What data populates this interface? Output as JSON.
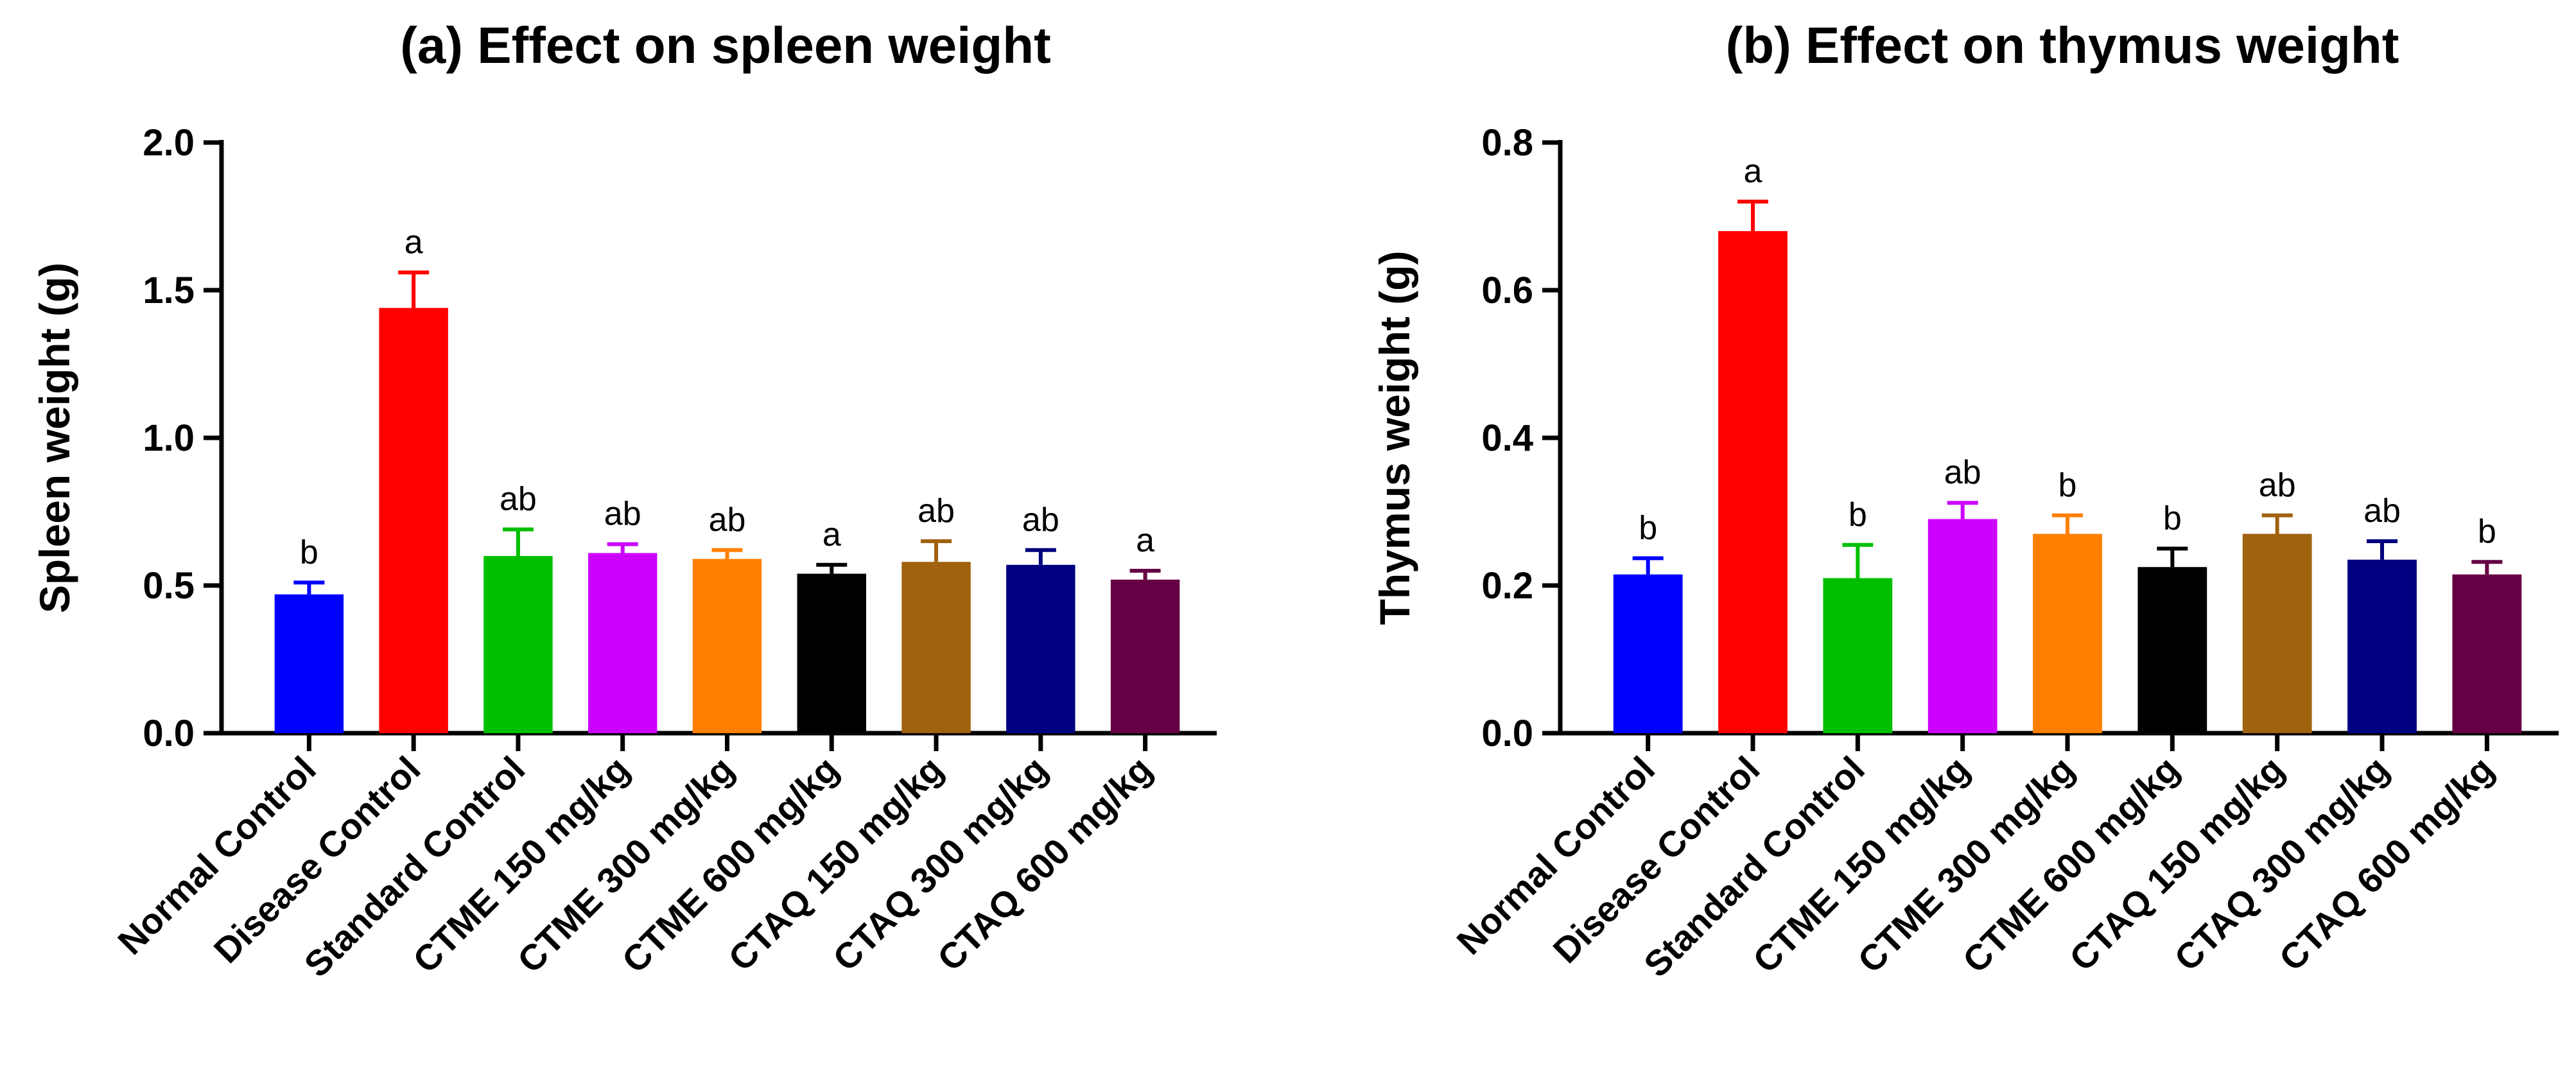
{
  "chart_data": [
    {
      "type": "bar",
      "title": "(a)  Effect on spleen weight",
      "xlabel": "",
      "ylabel": "Spleen weight (g)",
      "ylim": [
        0,
        2.0
      ],
      "yticks": [
        "0.0",
        "0.5",
        "1.0",
        "1.5",
        "2.0"
      ],
      "grid": false,
      "categories": [
        "Normal Control",
        "Disease Control",
        "Standard Control",
        "CTME 150 mg/kg",
        "CTME 300 mg/kg",
        "CTME 600 mg/kg",
        "CTAQ 150 mg/kg",
        "CTAQ 300 mg/kg",
        "CTAQ 600 mg/kg"
      ],
      "values": [
        0.47,
        1.44,
        0.6,
        0.61,
        0.59,
        0.54,
        0.58,
        0.57,
        0.52
      ],
      "errors": [
        0.04,
        0.12,
        0.09,
        0.03,
        0.03,
        0.03,
        0.07,
        0.05,
        0.03
      ],
      "significance": [
        "b",
        "a",
        "ab",
        "ab",
        "ab",
        "a",
        "ab",
        "ab",
        "a"
      ],
      "colors": [
        "#0000FF",
        "#FF0000",
        "#00BF00",
        "#CC00FF",
        "#FF8000",
        "#000000",
        "#A0620F",
        "#000080",
        "#660044"
      ]
    },
    {
      "type": "bar",
      "title": "(b)  Effect on thymus weight",
      "xlabel": "",
      "ylabel": "Thymus weight (g)",
      "ylim": [
        0,
        0.8
      ],
      "yticks": [
        "0.0",
        "0.2",
        "0.4",
        "0.6",
        "0.8"
      ],
      "grid": false,
      "categories": [
        "Normal Control",
        "Disease Control",
        "Standard Control",
        "CTME 150 mg/kg",
        "CTME 300 mg/kg",
        "CTME 600 mg/kg",
        "CTAQ 150 mg/kg",
        "CTAQ 300 mg/kg",
        "CTAQ 600 mg/kg"
      ],
      "values": [
        0.215,
        0.68,
        0.21,
        0.29,
        0.27,
        0.225,
        0.27,
        0.235,
        0.215
      ],
      "errors": [
        0.022,
        0.04,
        0.045,
        0.022,
        0.025,
        0.025,
        0.025,
        0.025,
        0.017
      ],
      "significance": [
        "b",
        "a",
        "b",
        "ab",
        "b",
        "b",
        "ab",
        "ab",
        "b"
      ],
      "colors": [
        "#0000FF",
        "#FF0000",
        "#00BF00",
        "#CC00FF",
        "#FF8000",
        "#000000",
        "#A0620F",
        "#000080",
        "#660044"
      ]
    }
  ]
}
